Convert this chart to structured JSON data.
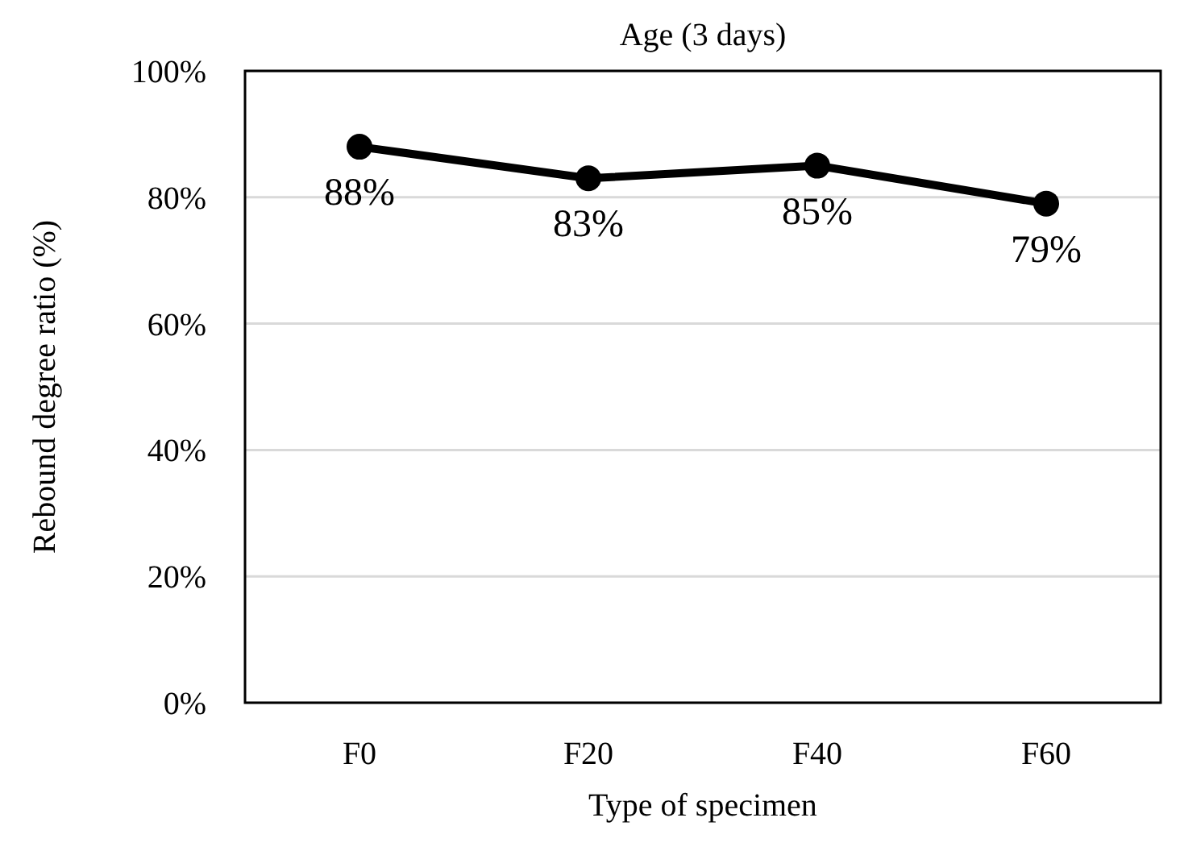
{
  "chart_data": {
    "type": "line",
    "title": "Age (3 days)",
    "xlabel": "Type of specimen",
    "ylabel": "Rebound degree ratio (%)",
    "categories": [
      "F0",
      "F20",
      "F40",
      "F60"
    ],
    "series": [
      {
        "color": "#000000",
        "values": [
          88,
          83,
          85,
          79
        ],
        "value_labels": [
          "88%",
          "83%",
          "85%",
          "79%"
        ]
      }
    ],
    "ylim": [
      0,
      100
    ],
    "yticks": [
      {
        "value": 0,
        "label": "0%"
      },
      {
        "value": 20,
        "label": "20%"
      },
      {
        "value": 40,
        "label": "40%"
      },
      {
        "value": 60,
        "label": "60%"
      },
      {
        "value": 80,
        "label": "80%"
      },
      {
        "value": 100,
        "label": "100%"
      }
    ],
    "grid": "y",
    "marker": "circle",
    "line_style": "solid"
  }
}
